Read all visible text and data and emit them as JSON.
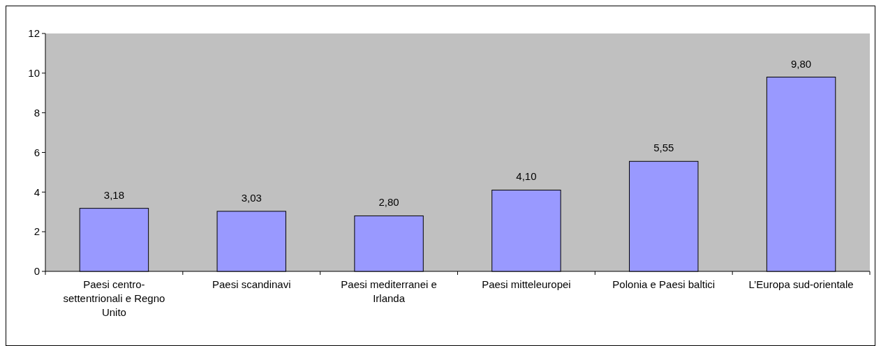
{
  "chart_data": {
    "type": "bar",
    "categories": [
      "Paesi centro-settentrionali e Regno Unito",
      "Paesi scandinavi",
      "Paesi mediterranei e Irlanda",
      "Paesi mitteleuropei",
      "Polonia e Paesi baltici",
      "L’Europa sud-orientale"
    ],
    "values": [
      3.18,
      3.03,
      2.8,
      4.1,
      5.55,
      9.8
    ],
    "value_labels": [
      "3,18",
      "3,03",
      "2,80",
      "4,10",
      "5,55",
      "9,80"
    ],
    "color": "#9999ff",
    "ylim": [
      0,
      12
    ],
    "yticks": [
      0,
      2,
      4,
      6,
      8,
      10,
      12
    ],
    "grid": false
  }
}
